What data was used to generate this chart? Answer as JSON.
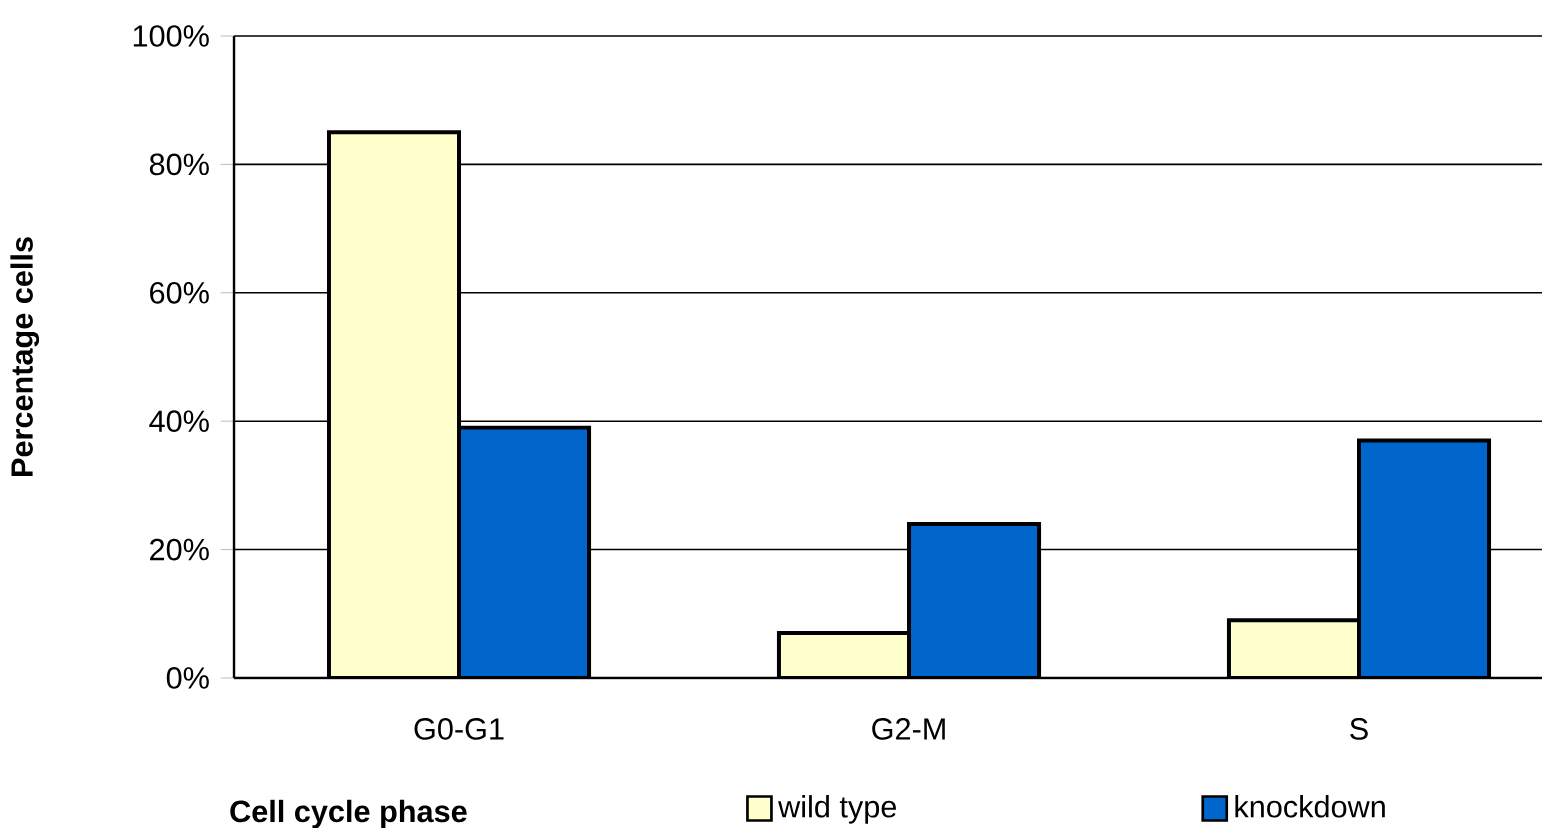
{
  "chart_data": {
    "type": "bar",
    "xlabel": "Cell cycle phase",
    "ylabel": "Percentage cells",
    "categories": [
      "G0-G1",
      "G2-M",
      "S"
    ],
    "series": [
      {
        "name": "wild type",
        "color": "#ffffcc",
        "values": [
          85,
          7,
          9
        ]
      },
      {
        "name": "knockdown",
        "color": "#0066cc",
        "values": [
          39,
          24,
          37
        ]
      }
    ],
    "ylim": [
      0,
      100
    ],
    "yticks": [
      {
        "value": 0,
        "label": "0%"
      },
      {
        "value": 20,
        "label": "20%"
      },
      {
        "value": 40,
        "label": "40%"
      },
      {
        "value": 60,
        "label": "60%"
      },
      {
        "value": 80,
        "label": "80%"
      },
      {
        "value": 100,
        "label": "100%"
      }
    ],
    "grid": "y",
    "legend": "bottom"
  }
}
